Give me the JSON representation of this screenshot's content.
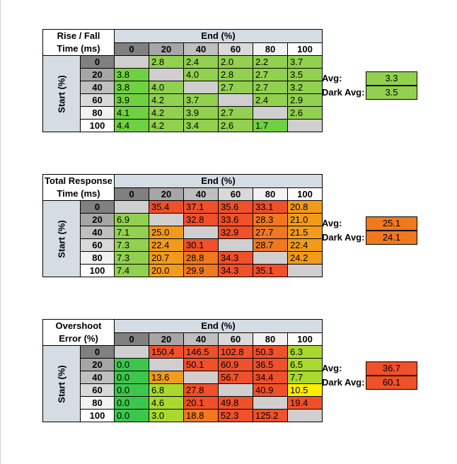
{
  "colors": {
    "header_bg": "#d6dce4",
    "hdr_0": "#808080",
    "hdr_20": "#a6a6a6",
    "hdr_40": "#bfbfbf",
    "hdr_60": "#d9d9d9",
    "hdr_80": "#f2f2f2",
    "hdr_100": "#ffffff",
    "diag": "#d0cece",
    "green_bright": "#6fd13f",
    "green": "#92d050",
    "green_dark": "#3cc74c",
    "yellow_green": "#a9d92f",
    "yellow": "#ffee00",
    "orange": "#f29b1a",
    "orange_red": "#f0781e",
    "red": "#f0502a"
  },
  "sections": [
    {
      "corner_line1": "Rise / Fall",
      "corner_line2": "Time (ms)",
      "end_label": "End (%)",
      "start_label": "Start (%)",
      "avg_label": "Avg:",
      "avg_value": "3.3",
      "dark_avg_label": "Dark Avg:",
      "dark_avg_value": "3.5"
    },
    {
      "corner_line1": "Total Response",
      "corner_line2": "Time (ms)",
      "end_label": "End (%)",
      "start_label": "Start (%)",
      "avg_label": "Avg:",
      "avg_value": "25.1",
      "dark_avg_label": "Dark Avg:",
      "dark_avg_value": "24.1"
    },
    {
      "corner_line1": "Overshoot",
      "corner_line2": "Error (%)",
      "end_label": "End (%)",
      "start_label": "Start (%)",
      "avg_label": "Avg:",
      "avg_value": "36.7",
      "dark_avg_label": "Dark Avg:",
      "dark_avg_value": "60.1"
    }
  ],
  "chart_data": [
    {
      "type": "heatmap",
      "title": "Rise / Fall Time (ms)",
      "xlabel": "End (%)",
      "ylabel": "Start (%)",
      "x": [
        "0",
        "20",
        "40",
        "60",
        "80",
        "100"
      ],
      "y": [
        "0",
        "20",
        "40",
        "60",
        "80",
        "100"
      ],
      "values": [
        [
          "",
          "2.8",
          "2.4",
          "2.0",
          "2.2",
          "3.7"
        ],
        [
          "3.8",
          "",
          "4.0",
          "2.8",
          "2.7",
          "3.5"
        ],
        [
          "3.8",
          "4.0",
          "",
          "2.7",
          "2.7",
          "3.2"
        ],
        [
          "3.9",
          "4.2",
          "3.7",
          "",
          "2.4",
          "2.9"
        ],
        [
          "4.1",
          "4.2",
          "3.9",
          "2.7",
          "",
          "2.6"
        ],
        [
          "4.4",
          "4.2",
          "3.4",
          "2.6",
          "1.7",
          ""
        ]
      ],
      "cell_colors": [
        [
          "diag",
          "green",
          "green",
          "green",
          "green",
          "green"
        ],
        [
          "green_bright",
          "diag",
          "green",
          "green",
          "green",
          "green"
        ],
        [
          "green_bright",
          "green",
          "diag",
          "green",
          "green",
          "green"
        ],
        [
          "green_bright",
          "green",
          "green",
          "diag",
          "green",
          "green"
        ],
        [
          "green_bright",
          "green",
          "green",
          "green",
          "diag",
          "green"
        ],
        [
          "green_bright",
          "green",
          "green",
          "green",
          "green_bright",
          "diag"
        ]
      ],
      "avg": "3.3",
      "dark_avg": "3.5",
      "avg_color": "green",
      "dark_avg_color": "green"
    },
    {
      "type": "heatmap",
      "title": "Total Response Time (ms)",
      "xlabel": "End (%)",
      "ylabel": "Start (%)",
      "x": [
        "0",
        "20",
        "40",
        "60",
        "80",
        "100"
      ],
      "y": [
        "0",
        "20",
        "40",
        "60",
        "80",
        "100"
      ],
      "values": [
        [
          "",
          "35.4",
          "37.1",
          "35.6",
          "33.1",
          "20.8"
        ],
        [
          "6.9",
          "",
          "32.8",
          "33.6",
          "28.3",
          "21.0"
        ],
        [
          "7.1",
          "25.0",
          "",
          "32.9",
          "27.7",
          "21.5"
        ],
        [
          "7.3",
          "22.4",
          "30.1",
          "",
          "28.7",
          "22.4"
        ],
        [
          "7.3",
          "20.7",
          "28.8",
          "34.3",
          "",
          "24.2"
        ],
        [
          "7.4",
          "20.0",
          "29.9",
          "34.3",
          "35.1",
          ""
        ]
      ],
      "cell_colors": [
        [
          "diag",
          "red",
          "red",
          "red",
          "red",
          "orange"
        ],
        [
          "green",
          "diag",
          "red",
          "red",
          "orange_red",
          "orange"
        ],
        [
          "green",
          "orange",
          "diag",
          "red",
          "orange_red",
          "orange"
        ],
        [
          "green",
          "orange",
          "red",
          "diag",
          "orange_red",
          "orange"
        ],
        [
          "green",
          "orange",
          "orange_red",
          "red",
          "diag",
          "orange"
        ],
        [
          "green",
          "orange",
          "orange_red",
          "red",
          "red",
          "diag"
        ]
      ],
      "avg": "25.1",
      "dark_avg": "24.1",
      "avg_color": "orange_red",
      "dark_avg_color": "orange_red"
    },
    {
      "type": "heatmap",
      "title": "Overshoot Error (%)",
      "xlabel": "End (%)",
      "ylabel": "Start (%)",
      "x": [
        "0",
        "20",
        "40",
        "60",
        "80",
        "100"
      ],
      "y": [
        "0",
        "20",
        "40",
        "60",
        "80",
        "100"
      ],
      "values": [
        [
          "",
          "150.4",
          "146.5",
          "102.8",
          "50.3",
          "6.3"
        ],
        [
          "0.0",
          "",
          "50.1",
          "60.9",
          "36.5",
          "6.5"
        ],
        [
          "0.0",
          "13.6",
          "",
          "56.7",
          "34.4",
          "7.7"
        ],
        [
          "0.0",
          "6.8",
          "27.8",
          "",
          "40.9",
          "10.5"
        ],
        [
          "0.0",
          "4.6",
          "20.1",
          "49.8",
          "",
          "19.4"
        ],
        [
          "0.0",
          "3.0",
          "18.8",
          "52.3",
          "125.2",
          ""
        ]
      ],
      "cell_colors": [
        [
          "diag",
          "red",
          "red",
          "red",
          "red",
          "yellow_green"
        ],
        [
          "green_dark",
          "diag",
          "red",
          "red",
          "red",
          "yellow_green"
        ],
        [
          "green_dark",
          "orange",
          "diag",
          "red",
          "red",
          "yellow_green"
        ],
        [
          "green_dark",
          "yellow_green",
          "red",
          "diag",
          "red",
          "yellow"
        ],
        [
          "green_dark",
          "yellow_green",
          "red",
          "red",
          "diag",
          "red"
        ],
        [
          "green_dark",
          "yellow_green",
          "orange_red",
          "red",
          "red",
          "diag"
        ]
      ],
      "avg": "36.7",
      "dark_avg": "60.1",
      "avg_color": "red",
      "dark_avg_color": "red"
    }
  ]
}
